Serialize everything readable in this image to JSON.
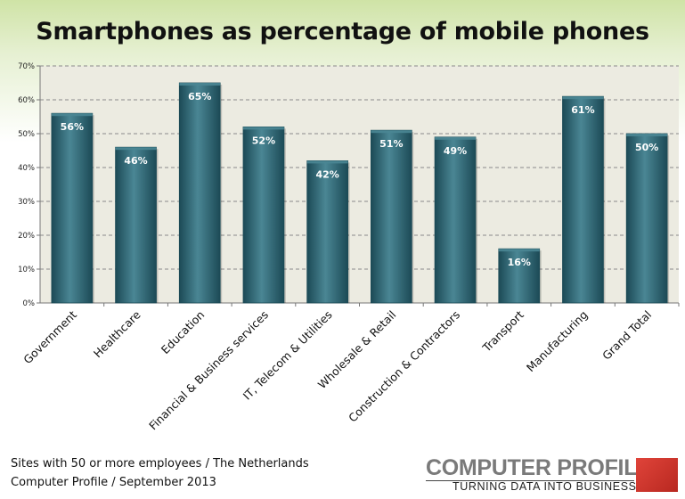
{
  "footnote": {
    "line1": "Sites with 50 or more employees / The Netherlands",
    "line2": "Computer Profile / September 2013"
  },
  "logo": {
    "name": "COMPUTER PROFILE",
    "tagline": "TURNING DATA INTO BUSINESS"
  },
  "colors": {
    "bar": "#2e6a78",
    "bar_dark": "#1c4a56",
    "bar_light": "#4a8694",
    "plot_background": "#ecebe1",
    "gridline": "#8a8a8a",
    "logo_accent": "#cc3a30"
  },
  "chart_data": {
    "type": "bar",
    "title": "Smartphones as percentage of mobile phones",
    "categories": [
      "Government",
      "Healthcare",
      "Education",
      "Financial & Business services",
      "IT, Telecom & Utilities",
      "Wholesale & Retail",
      "Construction & Contractors",
      "Transport",
      "Manufacturing",
      "Grand Total"
    ],
    "values": [
      56,
      46,
      65,
      52,
      42,
      51,
      49,
      16,
      61,
      50
    ],
    "data_labels": [
      "56%",
      "46%",
      "65%",
      "52%",
      "42%",
      "51%",
      "49%",
      "16%",
      "61%",
      "50%"
    ],
    "ylim": [
      0,
      70
    ],
    "yticks": [
      0,
      10,
      20,
      30,
      40,
      50,
      60,
      70
    ],
    "ytick_labels": [
      "0%",
      "10%",
      "20%",
      "30%",
      "40%",
      "50%",
      "60%",
      "70%"
    ],
    "xlabel": "",
    "ylabel": "",
    "grid": true,
    "legend": "none"
  }
}
